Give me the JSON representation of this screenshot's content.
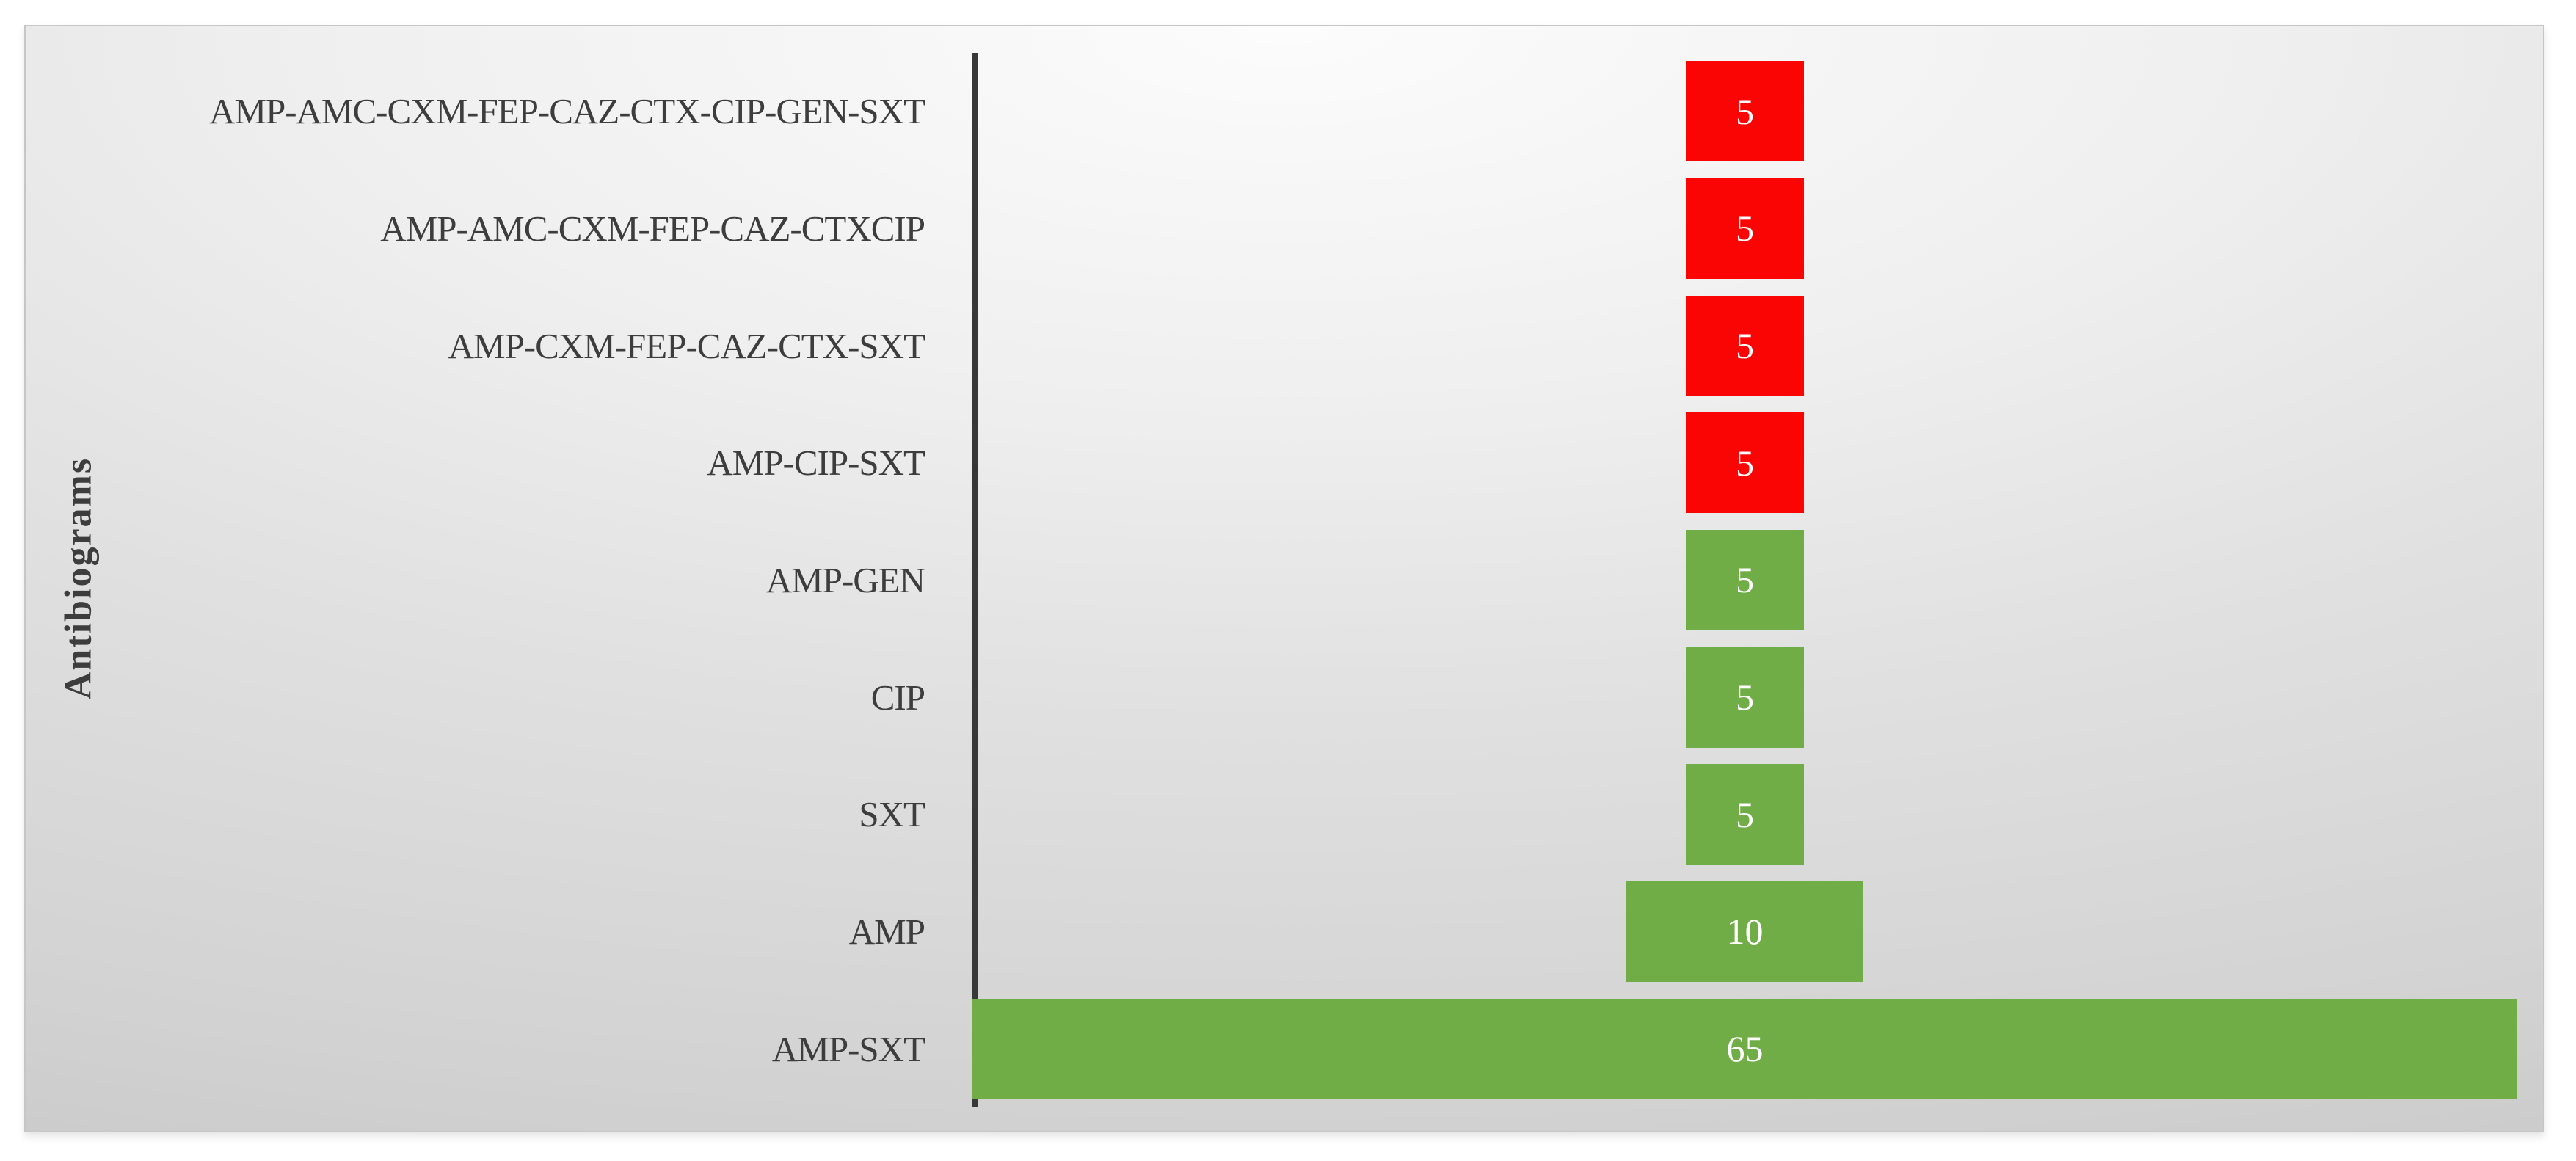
{
  "chart_data": {
    "type": "bar",
    "orientation": "horizontal",
    "style": "centered-funnel",
    "title": "",
    "xlabel": "",
    "ylabel": "Antibiograms",
    "xlim": [
      0,
      65
    ],
    "grid": false,
    "legend": "none",
    "categories": [
      "AMP-AMC-CXM-FEP-CAZ-CTX-CIP-GEN-SXT",
      "AMP-AMC-CXM-FEP-CAZ-CTXCIP",
      "AMP-CXM-FEP-CAZ-CTX-SXT",
      "AMP-CIP-SXT",
      "AMP-GEN",
      "CIP",
      "SXT",
      "AMP",
      "AMP-SXT"
    ],
    "values": [
      5,
      5,
      5,
      5,
      5,
      5,
      5,
      10,
      65
    ],
    "data_labels": [
      "5",
      "5",
      "5",
      "5",
      "5",
      "5",
      "5",
      "10",
      "65"
    ],
    "bar_colors": [
      "#fb0404",
      "#fb0404",
      "#fb0404",
      "#fb0404",
      "#70ad47",
      "#70ad47",
      "#70ad47",
      "#70ad47",
      "#70ad47"
    ],
    "colors": {
      "resistant_red": "#fb0404",
      "susceptible_green": "#70ad47",
      "axis_line": "#383838",
      "category_text": "#3d3d3d",
      "data_label_text": "#ffffff",
      "panel_border": "#c6c6c6"
    }
  }
}
